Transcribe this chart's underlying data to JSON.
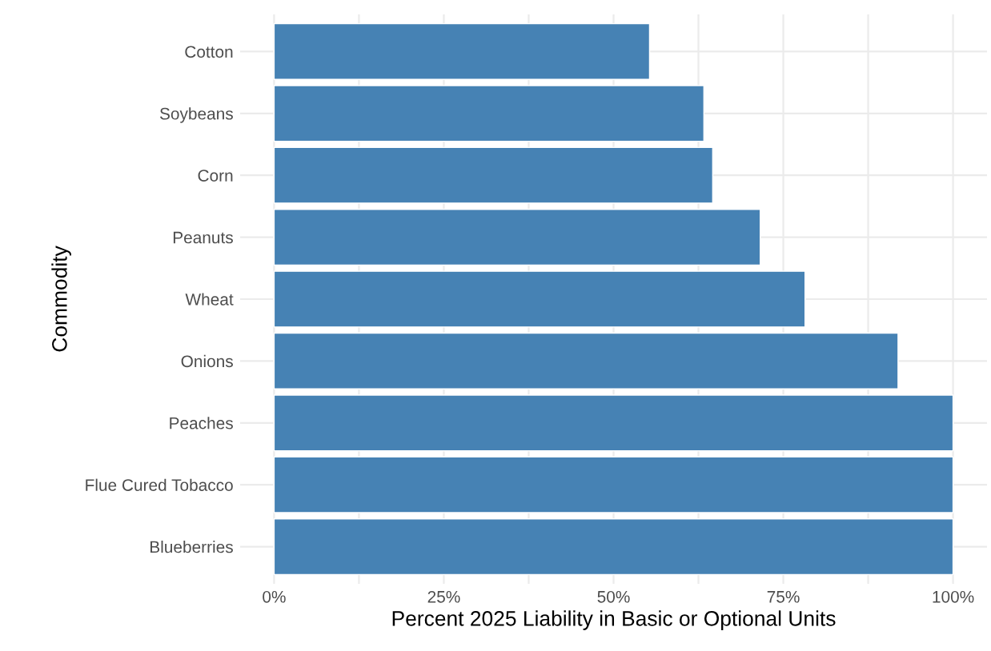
{
  "chart_data": {
    "type": "bar",
    "orientation": "horizontal",
    "xlabel": "Percent 2025 Liability in Basic or Optional Units",
    "ylabel": "Commodity",
    "categories": [
      "Cotton",
      "Soybeans",
      "Corn",
      "Peanuts",
      "Wheat",
      "Onions",
      "Peaches",
      "Flue Cured Tobacco",
      "Blueberries"
    ],
    "values": [
      55.3,
      63.3,
      64.6,
      71.6,
      78.2,
      91.9,
      100,
      100,
      100
    ],
    "color": "#4682b4",
    "xlim": [
      -5,
      105
    ],
    "xticks": [
      {
        "value": 0,
        "label": "0%"
      },
      {
        "value": 12.5,
        "label": null
      },
      {
        "value": 25,
        "label": "25%"
      },
      {
        "value": 37.5,
        "label": null
      },
      {
        "value": 50,
        "label": "50%"
      },
      {
        "value": 62.5,
        "label": null
      },
      {
        "value": 75,
        "label": "75%"
      },
      {
        "value": 87.5,
        "label": null
      },
      {
        "value": 100,
        "label": "100%"
      }
    ],
    "grid": true
  }
}
